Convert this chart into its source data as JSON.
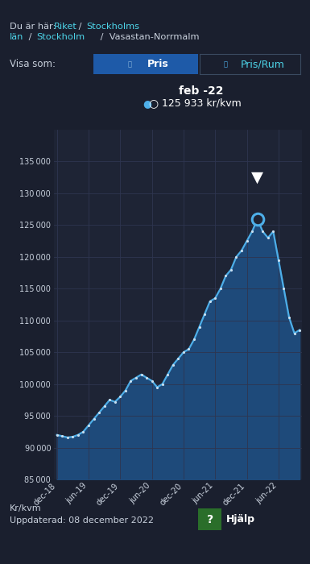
{
  "bg_color": "#1a1f2e",
  "chart_bg": "#1e2435",
  "line_color": "#4daee8",
  "fill_color": "#1e4a7a",
  "dot_color": "#c8dff0",
  "grid_color": "#2e3550",
  "text_color": "#c8d0dc",
  "link_color": "#4dd4e8",
  "ylabel": "Kr/kvm",
  "footer_text": "Uppdaterad: 08 december 2022",
  "tooltip_date": "feb -22",
  "tooltip_value": "125 933 kr/kvm",
  "tab_active_text": "Pris",
  "tab_inactive_text": "Pris/Rum",
  "tab_active_bg": "#1e5aa8",
  "tab_inactive_border": "#3a4a60",
  "ylim": [
    85000,
    140000
  ],
  "yticks": [
    85000,
    90000,
    95000,
    100000,
    105000,
    110000,
    115000,
    120000,
    125000,
    130000,
    135000
  ],
  "xtick_labels": [
    "dec-18",
    "jun-19",
    "dec-19",
    "jun-20",
    "dec-20",
    "jun-21",
    "dec-21",
    "jun-22"
  ],
  "xtick_positions": [
    0,
    6,
    12,
    18,
    24,
    30,
    36,
    42
  ],
  "data_x": [
    0,
    1,
    2,
    3,
    4,
    5,
    6,
    7,
    8,
    9,
    10,
    11,
    12,
    13,
    14,
    15,
    16,
    17,
    18,
    19,
    20,
    21,
    22,
    23,
    24,
    25,
    26,
    27,
    28,
    29,
    30,
    31,
    32,
    33,
    34,
    35,
    36,
    37,
    38,
    39,
    40,
    41,
    42,
    43,
    44,
    45,
    46
  ],
  "data_y": [
    92000,
    91800,
    91600,
    91700,
    92000,
    92500,
    93500,
    94500,
    95500,
    96500,
    97500,
    97200,
    98000,
    99000,
    100500,
    101000,
    101500,
    101000,
    100500,
    99500,
    100000,
    101500,
    103000,
    104000,
    105000,
    105500,
    107000,
    109000,
    111000,
    113000,
    113500,
    115000,
    117000,
    118000,
    120000,
    121000,
    122500,
    124000,
    125933,
    124000,
    123000,
    124000,
    119500,
    115000,
    110500,
    108000,
    108500
  ],
  "peak_index": 38,
  "peak_value": 125933,
  "xlim": [
    -0.5,
    46.5
  ]
}
